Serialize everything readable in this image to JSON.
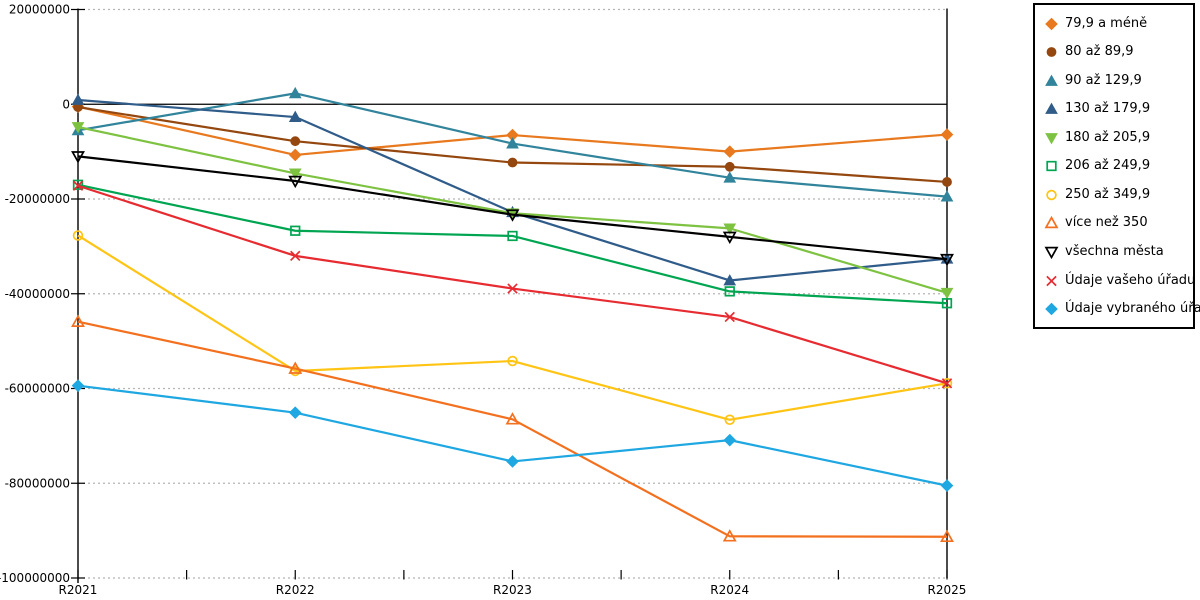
{
  "chart_data": {
    "type": "line",
    "title": "",
    "xlabel": "",
    "ylabel": "",
    "categories": [
      "R2021",
      "R2022",
      "R2023",
      "R2024",
      "R2025"
    ],
    "ylim": [
      -100000000,
      20000000
    ],
    "ytick_interval": 20000000,
    "ytick_labels": [
      "20000000",
      "0",
      "-20000000",
      "-40000000",
      "-60000000",
      "-80000000",
      "-100000000"
    ],
    "grid": "horizontal-dotted",
    "legend_position": "right-box",
    "colors": {
      "grid": "#b5b5b5",
      "axis": "#000000",
      "background": "#ffffff"
    },
    "series": [
      {
        "name": "79,9 a méně",
        "color": "#E8791E",
        "marker": "diamond",
        "filled": true,
        "values": [
          -500000,
          -10700000,
          -6500000,
          -10000000,
          -6400000
        ]
      },
      {
        "name": "80 až 89,9",
        "color": "#94470E",
        "marker": "circle",
        "filled": true,
        "values": [
          -600000,
          -7800000,
          -12300000,
          -13200000,
          -16400000
        ]
      },
      {
        "name": "90 až 129,9",
        "color": "#31849B",
        "marker": "triangle-up",
        "filled": true,
        "values": [
          -5500000,
          2300000,
          -8300000,
          -15500000,
          -19500000
        ]
      },
      {
        "name": "130 až 179,9",
        "color": "#305C8A",
        "marker": "triangle-up",
        "filled": true,
        "values": [
          900000,
          -2700000,
          -22800000,
          -37200000,
          -32600000
        ]
      },
      {
        "name": "180 až 205,9",
        "color": "#7EC242",
        "marker": "triangle-down",
        "filled": true,
        "values": [
          -4800000,
          -14600000,
          -23000000,
          -26200000,
          -39800000
        ]
      },
      {
        "name": "206 až 249,9",
        "color": "#00A551",
        "marker": "square",
        "filled": false,
        "values": [
          -17000000,
          -26700000,
          -27800000,
          -39500000,
          -42000000
        ]
      },
      {
        "name": "250 až 349,9",
        "color": "#FFC414",
        "marker": "circle",
        "filled": false,
        "values": [
          -27700000,
          -56300000,
          -54200000,
          -66600000,
          -58900000
        ]
      },
      {
        "name": "více než 350",
        "color": "#F3701E",
        "marker": "triangle-up",
        "filled": false,
        "values": [
          -45900000,
          -55800000,
          -66500000,
          -91200000,
          -91300000
        ]
      },
      {
        "name": "všechna města",
        "color": "#000000",
        "marker": "triangle-down",
        "filled": false,
        "values": [
          -11000000,
          -16200000,
          -23300000,
          -28000000,
          -32700000
        ]
      },
      {
        "name": "Údaje vašeho úřadu",
        "color": "#E62B31",
        "marker": "x",
        "filled": false,
        "values": [
          -17200000,
          -32000000,
          -38900000,
          -44900000,
          -58900000
        ]
      },
      {
        "name": "Údaje vybraného úřadu",
        "color": "#1EA7E1",
        "marker": "diamond",
        "filled": true,
        "values": [
          -59400000,
          -65100000,
          -75400000,
          -70900000,
          -80500000
        ]
      }
    ]
  }
}
